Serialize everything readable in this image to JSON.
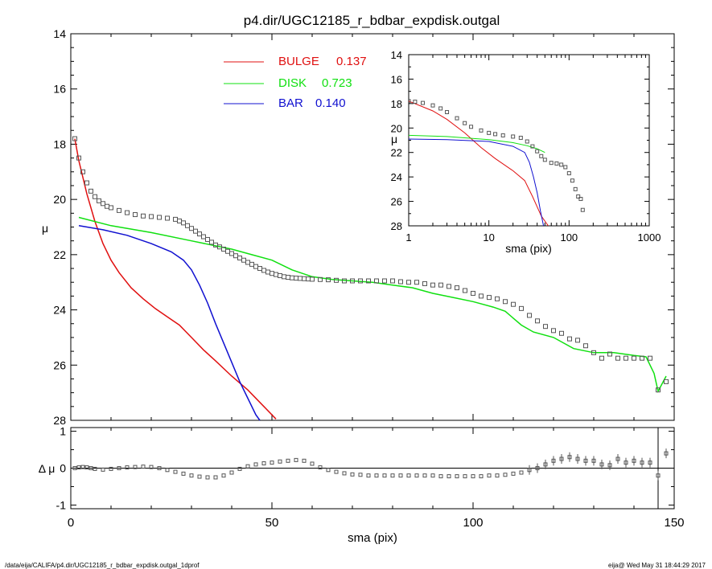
{
  "title": "p4.dir/UGC12185_r_bdbar_expdisk.outgal",
  "footer_left": "/data/eija/CALIFA/p4.dir/UGC12185_r_bdbar_expdisk.outgal_1dprof",
  "footer_right": "eija@  Wed May 31 18:44:29 2017",
  "colors": {
    "bulge": "#e01010",
    "disk": "#10e010",
    "bar": "#1010d0",
    "data": "#555555",
    "axis": "#000000"
  },
  "chart_data": [
    {
      "id": "main",
      "type": "line",
      "ylabel": "μ",
      "ylim": [
        28,
        14
      ],
      "xlim": [
        0,
        150
      ],
      "yticks": [
        "14",
        "16",
        "18",
        "20",
        "22",
        "24",
        "26",
        "28"
      ],
      "legend": [
        {
          "name": "BULGE",
          "value": "0.137",
          "color": "#e01010"
        },
        {
          "name": "DISK",
          "value": "0.723",
          "color": "#10e010"
        },
        {
          "name": "BAR",
          "value": "0.140",
          "color": "#1010d0"
        }
      ],
      "series": [
        {
          "name": "BULGE",
          "color": "#e01010",
          "x": [
            1,
            2,
            4,
            6,
            8,
            10,
            12,
            15,
            18,
            21,
            24,
            27,
            30,
            33,
            36,
            40,
            44,
            48,
            51
          ],
          "y": [
            17.8,
            18.6,
            19.8,
            20.8,
            21.6,
            22.2,
            22.65,
            23.2,
            23.6,
            23.95,
            24.25,
            24.55,
            25.0,
            25.45,
            25.85,
            26.4,
            26.9,
            27.5,
            27.95
          ]
        },
        {
          "name": "DISK",
          "color": "#10e010",
          "x": [
            2,
            10,
            20,
            30,
            40,
            45,
            50,
            55,
            60,
            65,
            70,
            75,
            80,
            85,
            90,
            95,
            100,
            105,
            108,
            110,
            112,
            115,
            120,
            125,
            130,
            135,
            140,
            143,
            145,
            146,
            148
          ],
          "y": [
            20.65,
            20.95,
            21.2,
            21.5,
            21.8,
            22.0,
            22.2,
            22.55,
            22.8,
            22.9,
            22.95,
            23.0,
            23.1,
            23.2,
            23.4,
            23.55,
            23.7,
            23.9,
            24.05,
            24.3,
            24.55,
            24.8,
            25.0,
            25.4,
            25.55,
            25.55,
            25.65,
            25.7,
            26.3,
            26.95,
            26.4
          ]
        },
        {
          "name": "BAR",
          "color": "#1010d0",
          "x": [
            2,
            8,
            14,
            20,
            25,
            28,
            30,
            32,
            34,
            36,
            38,
            40,
            42,
            44,
            46,
            47
          ],
          "y": [
            20.95,
            21.1,
            21.3,
            21.6,
            21.9,
            22.2,
            22.55,
            23.1,
            23.75,
            24.5,
            25.2,
            25.9,
            26.6,
            27.2,
            27.8,
            28.0
          ]
        },
        {
          "name": "data",
          "color": "#555555",
          "marker": "square",
          "x": [
            1,
            2,
            3,
            4,
            5,
            6,
            7,
            8,
            9,
            10,
            12,
            14,
            16,
            18,
            20,
            22,
            24,
            26,
            27,
            28,
            29,
            30,
            31,
            32,
            33,
            34,
            35,
            36,
            37,
            38,
            39,
            40,
            41,
            42,
            43,
            44,
            45,
            46,
            47,
            48,
            49,
            50,
            51,
            52,
            53,
            54,
            55,
            56,
            57,
            58,
            59,
            60,
            62,
            64,
            66,
            68,
            70,
            72,
            74,
            76,
            78,
            80,
            82,
            84,
            86,
            88,
            90,
            92,
            94,
            96,
            98,
            100,
            102,
            104,
            106,
            108,
            110,
            112,
            114,
            116,
            118,
            120,
            122,
            124,
            126,
            128,
            130,
            132,
            134,
            136,
            138,
            140,
            142,
            144,
            146,
            148
          ],
          "y": [
            17.8,
            18.5,
            19.0,
            19.4,
            19.7,
            19.9,
            20.05,
            20.15,
            20.25,
            20.3,
            20.4,
            20.48,
            20.55,
            20.6,
            20.62,
            20.65,
            20.68,
            20.72,
            20.78,
            20.85,
            20.95,
            21.05,
            21.15,
            21.25,
            21.35,
            21.45,
            21.55,
            21.65,
            21.72,
            21.8,
            21.88,
            21.96,
            22.04,
            22.12,
            22.2,
            22.28,
            22.35,
            22.43,
            22.5,
            22.57,
            22.63,
            22.68,
            22.72,
            22.76,
            22.8,
            22.82,
            22.84,
            22.85,
            22.86,
            22.87,
            22.88,
            22.89,
            22.9,
            22.91,
            22.93,
            22.95,
            22.95,
            22.95,
            22.95,
            22.95,
            22.95,
            22.95,
            22.98,
            23.0,
            23.0,
            23.05,
            23.1,
            23.1,
            23.15,
            23.2,
            23.3,
            23.4,
            23.5,
            23.55,
            23.6,
            23.7,
            23.8,
            23.95,
            24.2,
            24.4,
            24.6,
            24.75,
            24.85,
            25.05,
            25.1,
            25.3,
            25.55,
            25.75,
            25.6,
            25.75,
            25.75,
            25.75,
            25.75,
            25.75,
            26.9,
            26.6
          ]
        }
      ]
    },
    {
      "id": "inset",
      "type": "line",
      "xscale": "log",
      "xlabel": "sma (pix)",
      "ylabel": "μ",
      "xlim": [
        1,
        1000
      ],
      "ylim": [
        28,
        14
      ],
      "xticks": [
        "1",
        "10",
        "100",
        "1000"
      ],
      "yticks": [
        "14",
        "16",
        "18",
        "20",
        "22",
        "24",
        "26",
        "28"
      ],
      "series": [
        {
          "name": "BULGE",
          "color": "#e01010",
          "x": [
            1,
            2,
            3,
            5,
            8,
            12,
            20,
            28,
            35,
            45,
            55
          ],
          "y": [
            17.8,
            18.6,
            19.3,
            20.4,
            21.6,
            22.5,
            23.5,
            24.3,
            25.6,
            27.2,
            28.0
          ]
        },
        {
          "name": "DISK",
          "color": "#10e010",
          "x": [
            1,
            3,
            10,
            20,
            30,
            40,
            50
          ],
          "y": [
            20.6,
            20.7,
            20.95,
            21.2,
            21.45,
            21.7,
            22.0
          ]
        },
        {
          "name": "BAR",
          "color": "#1010d0",
          "x": [
            1,
            3,
            10,
            20,
            28,
            32,
            36,
            40,
            44,
            48
          ],
          "y": [
            20.9,
            20.95,
            21.1,
            21.5,
            22.0,
            22.8,
            24.0,
            25.3,
            26.8,
            28.0
          ]
        },
        {
          "name": "data",
          "color": "#555555",
          "marker": "square",
          "x": [
            1,
            1.2,
            1.5,
            2,
            2.5,
            3,
            4,
            5,
            6,
            8,
            10,
            12,
            15,
            20,
            25,
            30,
            35,
            40,
            45,
            50,
            60,
            70,
            80,
            90,
            100,
            110,
            120,
            130,
            140,
            148
          ],
          "y": [
            17.8,
            17.85,
            17.95,
            18.15,
            18.4,
            18.7,
            19.2,
            19.6,
            19.9,
            20.2,
            20.4,
            20.5,
            20.6,
            20.7,
            20.8,
            21.1,
            21.5,
            21.9,
            22.3,
            22.6,
            22.85,
            22.9,
            23.0,
            23.2,
            23.7,
            24.3,
            25.0,
            25.6,
            25.8,
            26.7
          ]
        }
      ]
    },
    {
      "id": "residual",
      "type": "scatter",
      "xlabel": "sma (pix)",
      "ylabel": "Δ μ",
      "xlim": [
        0,
        150
      ],
      "ylim": [
        -1.1,
        1.1
      ],
      "xticks": [
        "0",
        "50",
        "100",
        "150"
      ],
      "yticks": [
        "1",
        "0",
        "-1"
      ],
      "zero_line": true,
      "vertical_line_x": 146,
      "series": [
        {
          "name": "residual",
          "color": "#555555",
          "marker": "square",
          "x": [
            1,
            2,
            3,
            4,
            5,
            6,
            8,
            10,
            12,
            14,
            16,
            18,
            20,
            22,
            24,
            26,
            28,
            30,
            32,
            34,
            36,
            38,
            40,
            42,
            44,
            46,
            48,
            50,
            52,
            54,
            56,
            58,
            60,
            62,
            64,
            66,
            68,
            70,
            72,
            74,
            76,
            78,
            80,
            82,
            84,
            86,
            88,
            90,
            92,
            94,
            96,
            98,
            100,
            102,
            104,
            106,
            108,
            110,
            112,
            114,
            116,
            118,
            120,
            122,
            124,
            126,
            128,
            130,
            132,
            134,
            136,
            138,
            140,
            142,
            144,
            146,
            148
          ],
          "y": [
            0.0,
            0.02,
            0.03,
            0.02,
            0.0,
            -0.02,
            -0.04,
            -0.02,
            0.0,
            0.02,
            0.03,
            0.04,
            0.03,
            0.0,
            -0.05,
            -0.1,
            -0.15,
            -0.2,
            -0.23,
            -0.25,
            -0.25,
            -0.2,
            -0.12,
            -0.02,
            0.05,
            0.1,
            0.13,
            0.15,
            0.18,
            0.2,
            0.22,
            0.2,
            0.12,
            0.02,
            -0.05,
            -0.1,
            -0.14,
            -0.17,
            -0.18,
            -0.2,
            -0.2,
            -0.2,
            -0.2,
            -0.2,
            -0.2,
            -0.2,
            -0.2,
            -0.2,
            -0.22,
            -0.22,
            -0.22,
            -0.22,
            -0.22,
            -0.22,
            -0.2,
            -0.2,
            -0.18,
            -0.15,
            -0.12,
            -0.05,
            0.0,
            0.1,
            0.2,
            0.25,
            0.3,
            0.25,
            0.2,
            0.2,
            0.1,
            0.08,
            0.25,
            0.15,
            0.2,
            0.15,
            0.15,
            -0.2,
            0.4
          ]
        }
      ]
    }
  ]
}
